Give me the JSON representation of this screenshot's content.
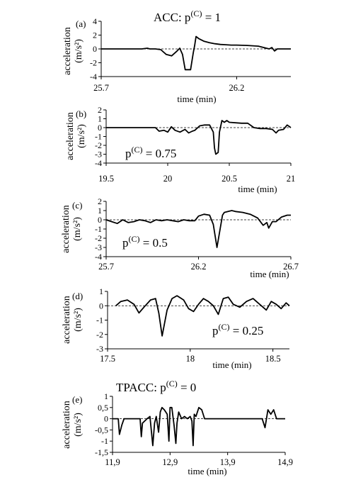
{
  "chart_data": [
    {
      "type": "line",
      "panel_label": "(a)",
      "annotation": {
        "prefix": "ACC: p",
        "sup": "(C)",
        "suffix": " = 1"
      },
      "xlabel": "time (min)",
      "ylabel_main": "acceleration",
      "ylabel_unit": "(m/s²)",
      "xlim": [
        25.7,
        26.4
      ],
      "ylim": [
        -4,
        4
      ],
      "yticks": [
        -4,
        -2,
        0,
        2,
        4
      ],
      "ytick_labels": [
        "-4",
        "-2",
        "0",
        "2",
        "4"
      ],
      "xticks": [
        25.7,
        26.2
      ],
      "xtick_labels": [
        "25.7",
        "26.2"
      ],
      "series": [
        {
          "x": [
            25.7,
            25.75,
            25.8,
            25.85,
            25.87,
            25.88,
            25.9,
            25.92,
            25.94,
            25.96,
            25.98,
            25.99,
            26.0,
            26.01,
            26.02,
            26.03,
            26.04,
            26.045,
            26.05,
            26.06,
            26.08,
            26.1,
            26.12,
            26.14,
            26.16,
            26.18,
            26.2,
            26.24,
            26.28,
            26.32,
            26.33,
            26.34,
            26.35,
            26.4
          ],
          "y": [
            0,
            0,
            0,
            0,
            0.1,
            0,
            0,
            -0.1,
            -0.8,
            -1.0,
            -0.3,
            0.1,
            -0.8,
            -3.0,
            -3.0,
            -3.0,
            -0.5,
            0.5,
            1.8,
            1.5,
            1.1,
            0.9,
            0.75,
            0.65,
            0.6,
            0.55,
            0.55,
            0.5,
            0.4,
            0,
            0.2,
            -0.3,
            0,
            0
          ]
        }
      ]
    },
    {
      "type": "line",
      "panel_label": "(b)",
      "annotation": {
        "prefix": "p",
        "sup": "(C)",
        "suffix": " = 0.75"
      },
      "xlabel": "time (min)",
      "ylabel_main": "acceleration",
      "ylabel_unit": "(m/s²)",
      "xlim": [
        19.5,
        21
      ],
      "ylim": [
        -4,
        2
      ],
      "yticks": [
        -4,
        -3,
        -2,
        -1,
        0,
        1,
        2
      ],
      "ytick_labels": [
        "-4",
        "-3",
        "-2",
        "-1",
        "0",
        "1",
        "2"
      ],
      "xticks": [
        19.5,
        20,
        20.5,
        21
      ],
      "xtick_labels": [
        "19.5",
        "20",
        "20.5",
        "21"
      ],
      "series": [
        {
          "x": [
            19.5,
            19.9,
            19.93,
            19.97,
            20.0,
            20.03,
            20.06,
            20.1,
            20.14,
            20.17,
            20.2,
            20.22,
            20.26,
            20.3,
            20.34,
            20.37,
            20.38,
            20.39,
            20.41,
            20.42,
            20.44,
            20.46,
            20.48,
            20.5,
            20.6,
            20.65,
            20.7,
            20.75,
            20.8,
            20.85,
            20.88,
            20.9,
            20.94,
            20.97,
            21.0
          ],
          "y": [
            0,
            0,
            -0.4,
            -0.3,
            -0.5,
            0.1,
            -0.3,
            -0.5,
            -0.2,
            -0.6,
            -0.4,
            -0.3,
            0.2,
            0.3,
            0.3,
            -0.5,
            -2.3,
            -3.0,
            -2.8,
            -0.5,
            0.8,
            0.6,
            0.8,
            0.6,
            0.5,
            0.5,
            0,
            -0.1,
            -0.1,
            -0.2,
            -0.6,
            -0.3,
            -0.2,
            0.3,
            0
          ]
        }
      ]
    },
    {
      "type": "line",
      "panel_label": "(c)",
      "annotation": {
        "prefix": "p",
        "sup": "(C)",
        "suffix": " = 0.5"
      },
      "xlabel": "time (min)",
      "ylabel_main": "acceleration",
      "ylabel_unit": "(m/s²)",
      "xlim": [
        25.7,
        26.7
      ],
      "ylim": [
        -4,
        2
      ],
      "yticks": [
        -4,
        -3,
        -2,
        -1,
        0,
        1,
        2
      ],
      "ytick_labels": [
        "-4",
        "-3",
        "-2",
        "-1",
        "0",
        "1",
        "2"
      ],
      "xticks": [
        25.7,
        26.2,
        26.7
      ],
      "xtick_labels": [
        "25.7",
        "26.2",
        "26.7"
      ],
      "series": [
        {
          "x": [
            25.7,
            25.73,
            25.76,
            25.79,
            25.82,
            25.85,
            25.88,
            25.91,
            25.94,
            25.97,
            26.0,
            26.03,
            26.06,
            26.09,
            26.12,
            26.15,
            26.18,
            26.2,
            26.23,
            26.26,
            26.28,
            26.3,
            26.33,
            26.34,
            26.36,
            26.38,
            26.4,
            26.44,
            26.48,
            26.52,
            26.55,
            26.57,
            26.58,
            26.6,
            26.62,
            26.65,
            26.68,
            26.7
          ],
          "y": [
            0,
            -0.2,
            -0.4,
            0,
            -0.3,
            -0.2,
            0,
            -0.1,
            -0.3,
            0,
            -0.1,
            0,
            -0.1,
            -0.2,
            0,
            -0.1,
            -0.1,
            0.4,
            0.6,
            0.5,
            -0.5,
            -3.0,
            0.5,
            0.8,
            0.9,
            1.0,
            0.9,
            0.8,
            0.6,
            0.2,
            -0.6,
            -0.3,
            -0.9,
            -0.2,
            -0.2,
            0.3,
            0.5,
            0.5
          ]
        }
      ]
    },
    {
      "type": "line",
      "panel_label": "(d)",
      "annotation": {
        "prefix": "p",
        "sup": "(C)",
        "suffix": " = 0.25"
      },
      "xlabel": "time (min)",
      "ylabel_main": "acceleration",
      "ylabel_unit": "(m/s²)",
      "xlim": [
        17.5,
        18.6
      ],
      "ylim": [
        -3,
        1
      ],
      "yticks": [
        -3,
        -2,
        -1,
        0,
        1
      ],
      "ytick_labels": [
        "-3",
        "-2",
        "-1",
        "0",
        "1"
      ],
      "xticks": [
        17.5,
        18,
        18.5
      ],
      "xtick_labels": [
        "17.5",
        "18",
        "18.5"
      ],
      "series": [
        {
          "x": [
            17.55,
            17.58,
            17.62,
            17.66,
            17.69,
            17.72,
            17.76,
            17.79,
            17.81,
            17.83,
            17.86,
            17.89,
            17.92,
            17.96,
            17.99,
            18.02,
            18.05,
            18.08,
            18.11,
            18.14,
            18.17,
            18.2,
            18.23,
            18.26,
            18.3,
            18.34,
            18.38,
            18.42,
            18.46,
            18.49,
            18.52,
            18.55,
            18.58,
            18.6
          ],
          "y": [
            0,
            0.3,
            0.4,
            0.1,
            -0.5,
            -0.1,
            0.4,
            0.5,
            -0.5,
            -2.1,
            -0.3,
            0.5,
            0.7,
            0.4,
            -0.2,
            -0.4,
            0.1,
            0.5,
            0.3,
            0,
            -0.6,
            0.5,
            0.6,
            0.1,
            -0.1,
            0.3,
            0.5,
            0.1,
            -0.3,
            0.3,
            0.1,
            -0.2,
            0.2,
            0
          ]
        }
      ]
    },
    {
      "type": "line",
      "panel_label": "(e)",
      "annotation": {
        "prefix": "TPACC: p",
        "sup": "(C)",
        "suffix": " = 0"
      },
      "xlabel": "time (min)",
      "ylabel_main": "acceleration",
      "ylabel_unit": "(m/s²)",
      "xlim": [
        11.9,
        14.9
      ],
      "ylim": [
        -1.5,
        1
      ],
      "yticks": [
        -1.5,
        -1,
        -0.5,
        0,
        0.5,
        1
      ],
      "ytick_labels": [
        "-1,5",
        "-1",
        "-0,5",
        "0",
        "0,5",
        "1"
      ],
      "xticks": [
        11.9,
        12.9,
        13.9,
        14.9
      ],
      "xtick_labels": [
        "11,9",
        "12,9",
        "13,9",
        "14,9"
      ],
      "series": [
        {
          "x": [
            11.9,
            12.0,
            12.02,
            12.06,
            12.1,
            12.2,
            12.38,
            12.4,
            12.42,
            12.5,
            12.55,
            12.6,
            12.63,
            12.66,
            12.7,
            12.73,
            12.76,
            12.8,
            12.85,
            12.88,
            12.9,
            12.93,
            12.97,
            13.0,
            13.02,
            13.05,
            13.1,
            13.15,
            13.2,
            13.25,
            13.28,
            13.3,
            13.32,
            13.35,
            13.4,
            13.45,
            13.5,
            13.55,
            13.6,
            13.8,
            14.0,
            14.5,
            14.55,
            14.6,
            14.65,
            14.7,
            14.75,
            14.8,
            14.9
          ],
          "y": [
            0,
            0,
            -0.7,
            -0.3,
            0,
            0,
            0,
            -0.8,
            -0.2,
            0,
            0.1,
            -1.2,
            -0.2,
            0.1,
            -0.6,
            0.3,
            0.5,
            0.4,
            0.2,
            -1.0,
            0.5,
            0.5,
            -0.3,
            -1.1,
            -0.2,
            0.3,
            0,
            0.1,
            0,
            0.1,
            -0.1,
            -1.2,
            0.2,
            0.1,
            0.5,
            0.4,
            0,
            0,
            0,
            0,
            0,
            0,
            -0.4,
            0.4,
            0.2,
            0.4,
            0,
            0,
            0
          ]
        }
      ]
    }
  ]
}
